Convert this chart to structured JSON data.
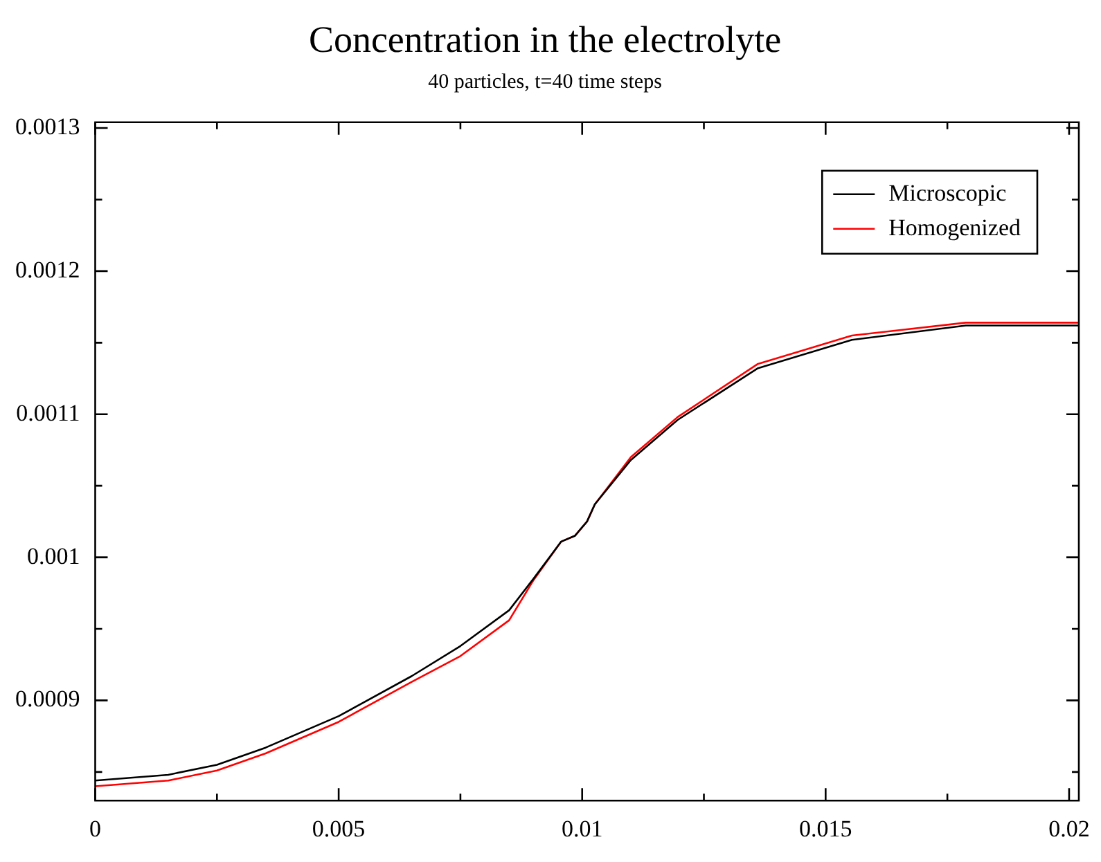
{
  "chart_data": {
    "type": "line",
    "title": "Concentration in the electrolyte",
    "subtitle": "40 particles, t=40 time steps",
    "x": [
      0,
      0.0015,
      0.0025,
      0.0035,
      0.005,
      0.0065,
      0.0075,
      0.0085,
      0.009,
      0.00957,
      0.00985,
      0.0101,
      0.01026,
      0.011,
      0.01196,
      0.0136,
      0.01554,
      0.01788,
      0.0202
    ],
    "series": [
      {
        "name": "Microscopic",
        "color": "#000000",
        "values": [
          0.000844,
          0.000848,
          0.000855,
          0.000867,
          0.000889,
          0.000917,
          0.000938,
          0.000963,
          0.000985,
          0.001011,
          0.001015,
          0.001025,
          0.001037,
          0.001068,
          0.001096,
          0.001132,
          0.001152,
          0.001162,
          0.001162
        ]
      },
      {
        "name": "Homogenized",
        "color": "#ff0000",
        "values": [
          0.00084,
          0.000844,
          0.000851,
          0.000863,
          0.000885,
          0.000913,
          0.000931,
          0.000956,
          0.000984,
          0.001011,
          0.001015,
          0.001025,
          0.001037,
          0.00107,
          0.001098,
          0.001135,
          0.001155,
          0.001164,
          0.001164
        ]
      }
    ],
    "xlim": [
      0,
      0.0202
    ],
    "ylim": [
      0.00083,
      0.001304
    ],
    "xticks": [
      0,
      {
        "value": 0.0025,
        "label": null
      },
      0.005,
      {
        "value": 0.0075,
        "label": null
      },
      0.01,
      {
        "value": 0.0125,
        "label": null
      },
      0.015,
      {
        "value": 0.0175,
        "label": null
      },
      0.02
    ],
    "yticks": [
      {
        "value": 0.00085,
        "label": null
      },
      0.0009,
      {
        "value": 0.00095,
        "label": null
      },
      0.001,
      {
        "value": 0.00105,
        "label": null
      },
      0.0011,
      {
        "value": 0.00115,
        "label": null
      },
      0.0012,
      {
        "value": 0.00125,
        "label": null
      },
      0.0013
    ],
    "legend": "top right",
    "marker": "none",
    "line_style": "solid"
  }
}
